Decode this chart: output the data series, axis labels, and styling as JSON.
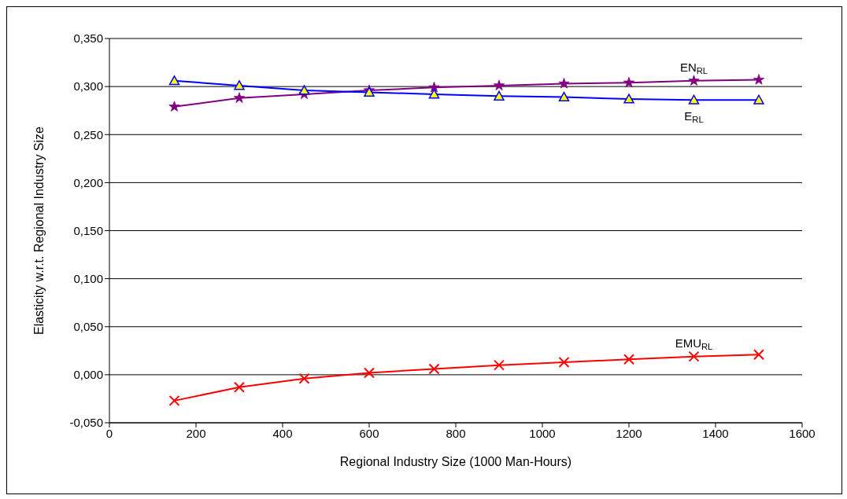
{
  "chart_data": {
    "type": "line",
    "xlabel": "Regional Industry Size (1000 Man-Hours)",
    "ylabel": "Elasticity w.r.t. Regional Industry Size",
    "x": [
      150,
      300,
      450,
      600,
      750,
      900,
      1050,
      1200,
      1350,
      1500
    ],
    "xlim": [
      0,
      1600
    ],
    "xticks": [
      0,
      200,
      400,
      600,
      800,
      1000,
      1200,
      1400,
      1600
    ],
    "ylim": [
      -0.05,
      0.35
    ],
    "yticks": [
      {
        "value": -0.05,
        "label": "-0,050"
      },
      {
        "value": 0,
        "label": "0,000"
      },
      {
        "value": 0.05,
        "label": "0,050"
      },
      {
        "value": 0.1,
        "label": "0,100"
      },
      {
        "value": 0.15,
        "label": "0,150"
      },
      {
        "value": 0.2,
        "label": "0,200"
      },
      {
        "value": 0.25,
        "label": "0,250"
      },
      {
        "value": 0.3,
        "label": "0,300"
      },
      {
        "value": 0.35,
        "label": "0,350"
      }
    ],
    "grid": "y",
    "line_style": "solid",
    "series": [
      {
        "name": "E$_{RL}$",
        "color": "#0000ff",
        "marker": "triangle",
        "values": [
          0.306,
          0.301,
          0.296,
          0.294,
          0.292,
          0.29,
          0.289,
          0.287,
          0.286,
          0.286
        ]
      },
      {
        "name": "EN$_{RL}$",
        "color": "#800080",
        "marker": "star",
        "values": [
          0.279,
          0.288,
          0.292,
          0.296,
          0.299,
          0.301,
          0.303,
          0.304,
          0.306,
          0.307
        ]
      },
      {
        "name": "EMU$_{RL}$",
        "color": "#ff0000",
        "marker": "cross",
        "values": [
          -0.027,
          -0.013,
          -0.004,
          0.002,
          0.006,
          0.01,
          0.013,
          0.016,
          0.019,
          0.021
        ]
      }
    ]
  }
}
